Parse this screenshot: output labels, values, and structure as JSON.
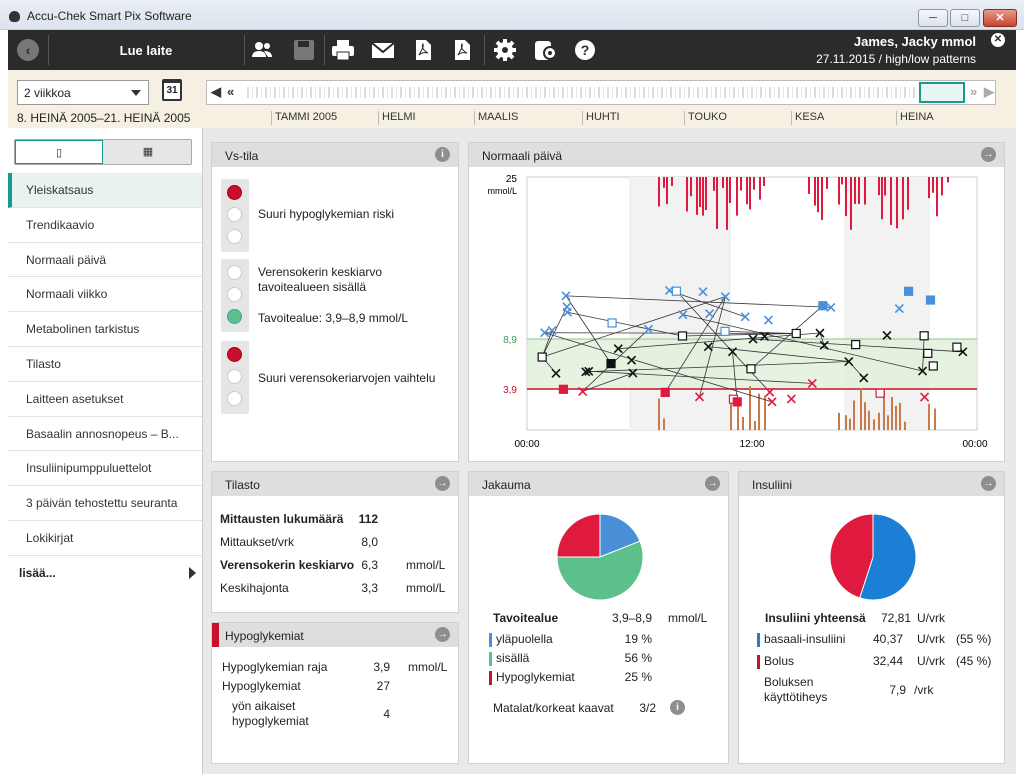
{
  "window": {
    "title": "Accu-Chek Smart Pix Software",
    "btn_min": "─",
    "btn_max": "□",
    "btn_close": "✕"
  },
  "toolbar": {
    "read_device": "Lue laite",
    "icons": [
      "users-icon",
      "save-icon",
      "print-icon",
      "mail-icon",
      "pdf-icon",
      "pdf-export-icon",
      "settings-icon",
      "device-settings-icon",
      "help-icon"
    ],
    "user_name": "James, Jacky mmol",
    "user_sub": "27.11.2015 / high/low patterns"
  },
  "datebar": {
    "period": "2 viikkoa",
    "calendar_day": "31",
    "range": "8. HEINÄ 2005–21. HEINÄ 2005",
    "months": [
      "TAMMI 2005",
      "HELMI",
      "MAALIS",
      "HUHTI",
      "TOUKO",
      "KESA",
      "HEINA"
    ]
  },
  "sidebar": {
    "view_single": "▯",
    "view_multi": "▦",
    "items": [
      "Yleiskatsaus",
      "Trendikaavio",
      "Normaali päivä",
      "Normaali viikko",
      "Metabolinen tarkistus",
      "Tilasto",
      "Laitteen asetukset",
      "Basaalin annosnopeus – B...",
      "Insuliinipumppuluettelot",
      "3 päivän tehostettu seuranta",
      "Lokikirjat"
    ],
    "more": "lisää..."
  },
  "vs": {
    "title": "Vs-tila",
    "hypo_risk": "Suuri hypoglykemian riski",
    "avg_target": "Verensokerin keskiarvo tavoitealueen sisällä",
    "target_range": "Tavoitealue: 3,9–8,9 mmol/L",
    "variability": "Suuri verensokeriarvojen vaihtelu"
  },
  "normal_day": {
    "title": "Normaali päivä",
    "y_top": "25",
    "y_unit": "mmol/L",
    "y_high": "8,9",
    "y_low": "3,9",
    "x_labels": [
      "00:00",
      "12:00",
      "00:00"
    ]
  },
  "stats": {
    "title": "Tilasto",
    "rows": [
      {
        "label": "Mittausten lukumäärä",
        "value": "112",
        "unit": ""
      },
      {
        "label": "Mittaukset/vrk",
        "value": "8,0",
        "unit": ""
      },
      {
        "label": "Verensokerin keskiarvo",
        "value": "6,3",
        "unit": "mmol/L"
      },
      {
        "label": "Keskihajonta",
        "value": "3,3",
        "unit": "mmol/L"
      }
    ]
  },
  "hypo": {
    "title": "Hypoglykemiat",
    "limit_label": "Hypoglykemian raja",
    "limit_value": "3,9",
    "limit_unit": "mmol/L",
    "count_label": "Hypoglykemiat",
    "count_value": "27",
    "night_label": "yön aikaiset hypoglykemiat",
    "night_value": "4"
  },
  "distribution": {
    "title": "Jakauma",
    "target_label": "Tavoitealue",
    "target_value": "3,9–8,9",
    "target_unit": "mmol/L",
    "above_label": "yläpuolella",
    "above_value": "19 %",
    "within_label": "sisällä",
    "within_value": "56 %",
    "hypo_label": "Hypoglykemiat",
    "hypo_value": "25 %",
    "patterns_label": "Matalat/korkeat kaavat",
    "patterns_value": "3/2",
    "slices": [
      {
        "name": "above",
        "pct": 19,
        "color": "#4a90d9"
      },
      {
        "name": "within",
        "pct": 56,
        "color": "#5cc08a"
      },
      {
        "name": "hypo",
        "pct": 25,
        "color": "#e0193f"
      }
    ]
  },
  "insulin": {
    "title": "Insuliini",
    "total_label": "Insuliini yhteensä",
    "total_value": "72,81",
    "total_unit": "U/vrk",
    "basal_label": "basaali-insuliini",
    "basal_value": "40,37",
    "basal_unit": "U/vrk",
    "basal_pct": "(55 %)",
    "bolus_label": "Bolus",
    "bolus_value": "32,44",
    "bolus_unit": "U/vrk",
    "bolus_pct": "(45 %)",
    "freq_label": "Boluksen käyttötiheys",
    "freq_value": "7,9",
    "freq_unit": "/vrk",
    "slices": [
      {
        "name": "basal",
        "pct": 55,
        "color": "#1c7fd6"
      },
      {
        "name": "bolus",
        "pct": 45,
        "color": "#e0193f"
      }
    ]
  },
  "colors": {
    "accent": "#1a9b8a",
    "red": "#c8102e",
    "blue": "#4a90d9",
    "green": "#5cc08a",
    "brown": "#c77a4a"
  }
}
